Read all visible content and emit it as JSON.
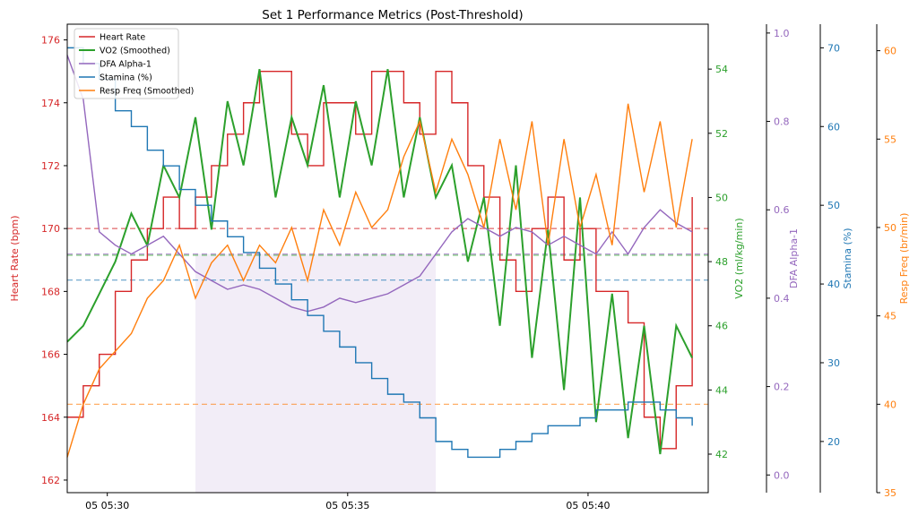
{
  "chart_data": {
    "type": "line",
    "title": "Set 1 Performance Metrics (Post-Threshold)",
    "x_range": [
      "05 05:29:10",
      "05 05:42:30"
    ],
    "x_ticks": [
      "05 05:30",
      "05 05:35",
      "05 05:40"
    ],
    "axes": [
      {
        "name": "hr",
        "label": "Heart Rate (bpm)",
        "color": "#d62728",
        "range": [
          161.6,
          176.5
        ],
        "ticks": [
          162,
          164,
          166,
          168,
          170,
          172,
          174,
          176
        ],
        "position": "left"
      },
      {
        "name": "vo2",
        "label": "VO2 (ml/kg/min)",
        "color": "#2ca02c",
        "range": [
          40.8,
          55.4
        ],
        "ticks": [
          42,
          44,
          46,
          48,
          50,
          52,
          54
        ],
        "position": "right"
      },
      {
        "name": "dfa",
        "label": "DFA Alpha-1",
        "color": "#9467bd",
        "range": [
          -0.04,
          1.02
        ],
        "ticks": [
          0.0,
          0.2,
          0.4,
          0.6,
          0.8,
          1.0
        ],
        "position": "right-offset-1"
      },
      {
        "name": "stam",
        "label": "Stamina (%)",
        "color": "#1f77b4",
        "range": [
          13.5,
          73
        ],
        "ticks": [
          20,
          30,
          40,
          50,
          60,
          70
        ],
        "position": "right-offset-2"
      },
      {
        "name": "resp",
        "label": "Resp Freq (br/min)",
        "color": "#ff7f0e",
        "range": [
          35,
          61.5
        ],
        "ticks": [
          35,
          40,
          45,
          50,
          55,
          60
        ],
        "position": "right-offset-3"
      }
    ],
    "reference_lines": [
      {
        "axis": "hr",
        "value": 170,
        "color": "#d62728"
      },
      {
        "axis": "vo2",
        "value": 48.2,
        "color": "#2ca02c"
      },
      {
        "axis": "dfa",
        "value": 0.5,
        "color": "#9467bd"
      },
      {
        "axis": "stam",
        "value": 40.5,
        "color": "#1f77b4"
      },
      {
        "axis": "resp",
        "value": 40,
        "color": "#ff7f0e"
      }
    ],
    "series": [
      {
        "name": "Heart Rate",
        "axis": "hr",
        "color": "#d62728",
        "x": [
          "05:29:10",
          "05:29:30",
          "05:29:50",
          "05:30:10",
          "05:30:30",
          "05:30:50",
          "05:31:10",
          "05:31:30",
          "05:31:50",
          "05:32:10",
          "05:32:30",
          "05:32:50",
          "05:33:10",
          "05:33:30",
          "05:33:50",
          "05:34:10",
          "05:34:30",
          "05:34:50",
          "05:35:10",
          "05:35:30",
          "05:35:50",
          "05:36:10",
          "05:36:30",
          "05:36:50",
          "05:37:10",
          "05:37:30",
          "05:37:50",
          "05:38:10",
          "05:38:30",
          "05:38:50",
          "05:39:10",
          "05:39:30",
          "05:39:50",
          "05:40:10",
          "05:40:30",
          "05:40:50",
          "05:41:10",
          "05:41:30",
          "05:41:50",
          "05:42:10"
        ],
        "values": [
          164,
          165,
          166,
          168,
          169,
          170,
          171,
          170,
          171,
          172,
          173,
          174,
          175,
          175,
          173,
          172,
          174,
          174,
          173,
          175,
          175,
          174,
          173,
          175,
          174,
          172,
          171,
          169,
          168,
          170,
          171,
          169,
          170,
          168,
          168,
          167,
          164,
          163,
          165,
          171
        ]
      },
      {
        "name": "VO2 (Smoothed)",
        "axis": "vo2",
        "color": "#2ca02c",
        "x": [
          "05:29:10",
          "05:29:30",
          "05:29:50",
          "05:30:10",
          "05:30:30",
          "05:30:50",
          "05:31:10",
          "05:31:30",
          "05:31:50",
          "05:32:10",
          "05:32:30",
          "05:32:50",
          "05:33:10",
          "05:33:30",
          "05:33:50",
          "05:34:10",
          "05:34:30",
          "05:34:50",
          "05:35:10",
          "05:35:30",
          "05:35:50",
          "05:36:10",
          "05:36:30",
          "05:36:50",
          "05:37:10",
          "05:37:30",
          "05:37:50",
          "05:38:10",
          "05:38:30",
          "05:38:50",
          "05:39:10",
          "05:39:30",
          "05:39:50",
          "05:40:10",
          "05:40:30",
          "05:40:50",
          "05:41:10",
          "05:41:30",
          "05:41:50",
          "05:42:10"
        ],
        "values": [
          45.5,
          46,
          47,
          48,
          49.5,
          48.5,
          51,
          50,
          52.5,
          49,
          53,
          51,
          54,
          50,
          52.5,
          51,
          53.5,
          50,
          53,
          51,
          54,
          50,
          52.5,
          50,
          51,
          48,
          50,
          46,
          51,
          45,
          49,
          44,
          50,
          43,
          47,
          42.5,
          46,
          42,
          46,
          45
        ]
      },
      {
        "name": "DFA Alpha-1",
        "axis": "dfa",
        "color": "#9467bd",
        "x": [
          "05:29:10",
          "05:29:30",
          "05:29:50",
          "05:30:10",
          "05:30:30",
          "05:30:50",
          "05:31:10",
          "05:31:30",
          "05:31:50",
          "05:32:10",
          "05:32:30",
          "05:32:50",
          "05:33:10",
          "05:33:30",
          "05:33:50",
          "05:34:10",
          "05:34:30",
          "05:34:50",
          "05:35:10",
          "05:35:30",
          "05:35:50",
          "05:36:10",
          "05:36:30",
          "05:36:50",
          "05:37:10",
          "05:37:30",
          "05:37:50",
          "05:38:10",
          "05:38:30",
          "05:38:50",
          "05:39:10",
          "05:39:30",
          "05:39:50",
          "05:40:10",
          "05:40:30",
          "05:40:50",
          "05:41:10",
          "05:41:30",
          "05:41:50",
          "05:42:10"
        ],
        "values": [
          0.95,
          0.85,
          0.55,
          0.52,
          0.5,
          0.52,
          0.54,
          0.5,
          0.46,
          0.44,
          0.42,
          0.43,
          0.42,
          0.4,
          0.38,
          0.37,
          0.38,
          0.4,
          0.39,
          0.4,
          0.41,
          0.43,
          0.45,
          0.5,
          0.55,
          0.58,
          0.56,
          0.54,
          0.56,
          0.55,
          0.52,
          0.54,
          0.52,
          0.5,
          0.55,
          0.5,
          0.56,
          0.6,
          0.57,
          0.55
        ]
      },
      {
        "name": "Stamina (%)",
        "axis": "stam",
        "color": "#1f77b4",
        "x": [
          "05:29:10",
          "05:29:30",
          "05:29:50",
          "05:30:10",
          "05:30:30",
          "05:30:50",
          "05:31:10",
          "05:31:30",
          "05:31:50",
          "05:32:10",
          "05:32:30",
          "05:32:50",
          "05:33:10",
          "05:33:30",
          "05:33:50",
          "05:34:10",
          "05:34:30",
          "05:34:50",
          "05:35:10",
          "05:35:30",
          "05:35:50",
          "05:36:10",
          "05:36:30",
          "05:36:50",
          "05:37:10",
          "05:37:30",
          "05:37:50",
          "05:38:10",
          "05:38:30",
          "05:38:50",
          "05:39:10",
          "05:39:30",
          "05:39:50",
          "05:40:10",
          "05:40:30",
          "05:40:50",
          "05:41:10",
          "05:41:30",
          "05:41:50",
          "05:42:10"
        ],
        "values": [
          70,
          68,
          66,
          62,
          60,
          57,
          55,
          52,
          50,
          48,
          46,
          44,
          42,
          40,
          38,
          36,
          34,
          32,
          30,
          28,
          26,
          25,
          23,
          20,
          19,
          18,
          18,
          19,
          20,
          21,
          22,
          22,
          23,
          24,
          24,
          25,
          25,
          24,
          23,
          22
        ]
      },
      {
        "name": "Resp Freq (Smoothed)",
        "axis": "resp",
        "color": "#ff7f0e",
        "x": [
          "05:29:10",
          "05:29:30",
          "05:29:50",
          "05:30:10",
          "05:30:30",
          "05:30:50",
          "05:31:10",
          "05:31:30",
          "05:31:50",
          "05:32:10",
          "05:32:30",
          "05:32:50",
          "05:33:10",
          "05:33:30",
          "05:33:50",
          "05:34:10",
          "05:34:30",
          "05:34:50",
          "05:35:10",
          "05:35:30",
          "05:35:50",
          "05:36:10",
          "05:36:30",
          "05:36:50",
          "05:37:10",
          "05:37:30",
          "05:37:50",
          "05:38:10",
          "05:38:30",
          "05:38:50",
          "05:39:10",
          "05:39:30",
          "05:39:50",
          "05:40:10",
          "05:40:30",
          "05:40:50",
          "05:41:10",
          "05:41:30",
          "05:41:50",
          "05:42:10"
        ],
        "values": [
          37,
          40,
          42,
          43,
          44,
          46,
          47,
          49,
          46,
          48,
          49,
          47,
          49,
          48,
          50,
          47,
          51,
          49,
          52,
          50,
          51,
          54,
          56,
          52,
          55,
          53,
          50,
          55,
          51,
          56,
          49,
          55,
          50,
          53,
          49,
          57,
          52,
          56,
          50,
          55
        ]
      }
    ],
    "legend": {
      "placement": "top-left",
      "entries": [
        "Heart Rate",
        "VO2 (Smoothed)",
        "DFA Alpha-1",
        "Stamina (%)",
        "Resp Freq (Smoothed)"
      ]
    },
    "grid": false
  }
}
